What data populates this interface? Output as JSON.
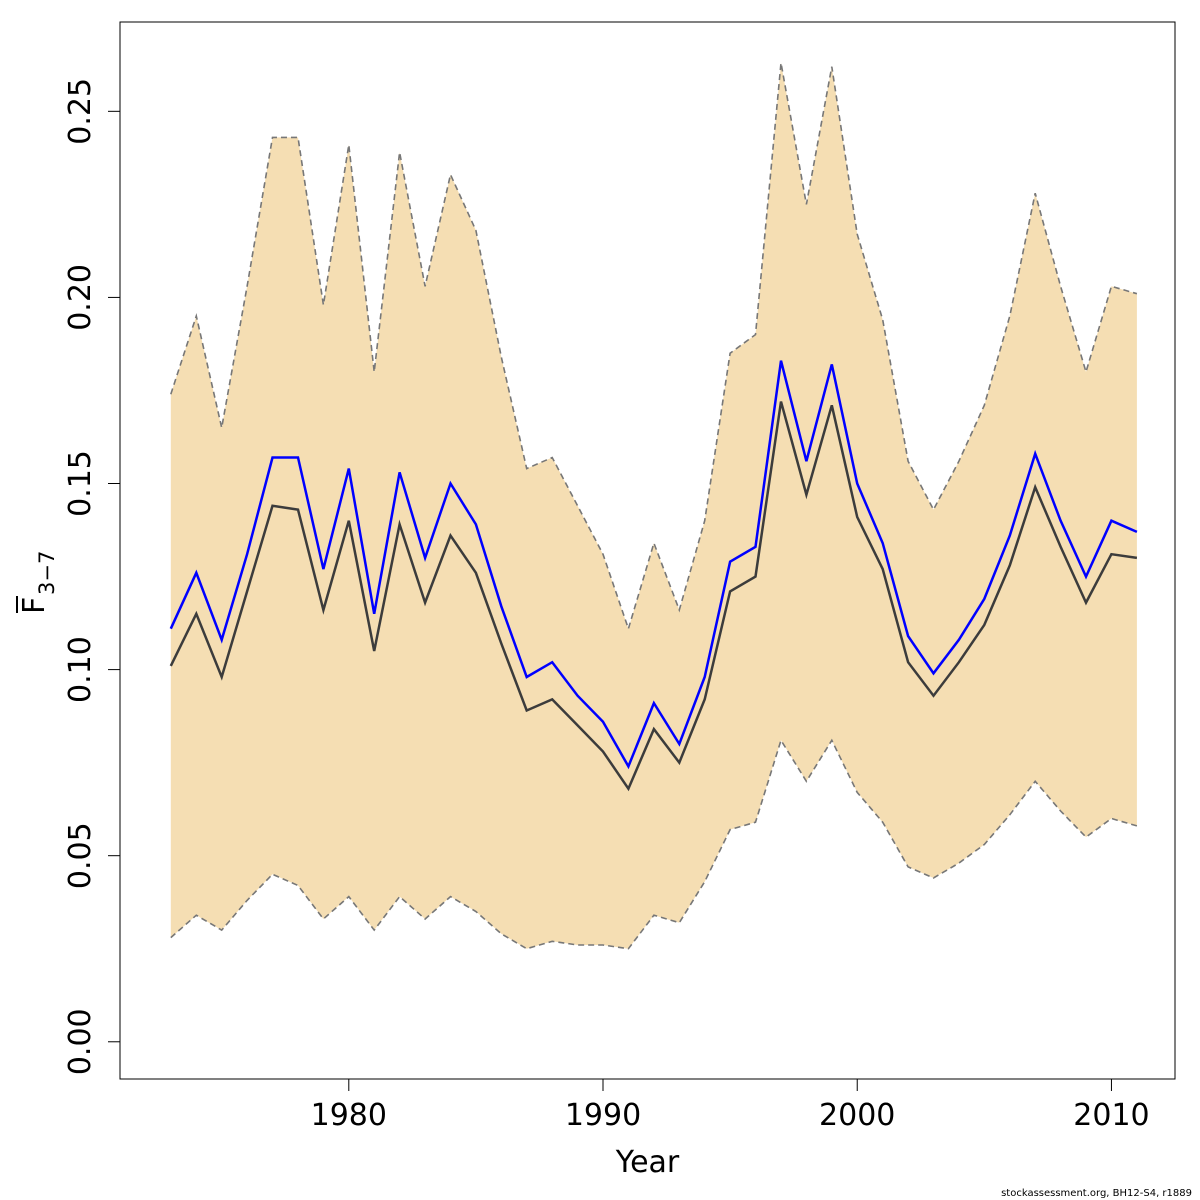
{
  "chart_data": {
    "type": "line",
    "xlabel": "Year",
    "ylabel": {
      "main": "F",
      "subscript": "3−7",
      "overbar": true
    },
    "xlim": [
      1971,
      2012.5
    ],
    "ylim": [
      -0.01,
      0.274
    ],
    "xticks": [
      1980,
      1990,
      2000,
      2010
    ],
    "yticks": [
      0.0,
      0.05,
      0.1,
      0.15,
      0.2,
      0.25
    ],
    "ytick_labels": [
      "0.00",
      "0.05",
      "0.10",
      "0.15",
      "0.20",
      "0.25"
    ],
    "xtick_labels": [
      "1980",
      "1990",
      "2000",
      "2010"
    ],
    "grid": false,
    "legend": "none",
    "x": [
      1973,
      1974,
      1975,
      1976,
      1977,
      1978,
      1979,
      1980,
      1981,
      1982,
      1983,
      1984,
      1985,
      1986,
      1987,
      1988,
      1989,
      1990,
      1991,
      1992,
      1993,
      1994,
      1995,
      1996,
      1997,
      1998,
      1999,
      2000,
      2001,
      2002,
      2003,
      2004,
      2005,
      2006,
      2007,
      2008,
      2009,
      2010,
      2011
    ],
    "band": {
      "upper": [
        0.174,
        0.195,
        0.165,
        0.203,
        0.243,
        0.243,
        0.198,
        0.241,
        0.18,
        0.239,
        0.203,
        0.233,
        0.218,
        0.184,
        0.154,
        0.157,
        0.144,
        0.131,
        0.111,
        0.134,
        0.116,
        0.14,
        0.185,
        0.19,
        0.263,
        0.225,
        0.262,
        0.217,
        0.194,
        0.156,
        0.143,
        0.156,
        0.171,
        0.195,
        0.228,
        0.203,
        0.18,
        0.203,
        0.201
      ],
      "lower": [
        0.028,
        0.034,
        0.03,
        0.038,
        0.045,
        0.042,
        0.033,
        0.039,
        0.03,
        0.039,
        0.033,
        0.039,
        0.035,
        0.029,
        0.025,
        0.027,
        0.026,
        0.026,
        0.025,
        0.034,
        0.032,
        0.043,
        0.057,
        0.059,
        0.081,
        0.07,
        0.081,
        0.067,
        0.059,
        0.047,
        0.044,
        0.048,
        0.053,
        0.061,
        0.07,
        0.062,
        0.055,
        0.06,
        0.058
      ],
      "color": "#f5deb3",
      "border_color": "#777777"
    },
    "series": [
      {
        "color": "#0000ff",
        "values": [
          0.111,
          0.126,
          0.108,
          0.131,
          0.157,
          0.157,
          0.127,
          0.154,
          0.115,
          0.153,
          0.13,
          0.15,
          0.139,
          0.117,
          0.098,
          0.102,
          0.093,
          0.086,
          0.074,
          0.091,
          0.08,
          0.098,
          0.129,
          0.133,
          0.183,
          0.156,
          0.182,
          0.15,
          0.134,
          0.109,
          0.099,
          0.108,
          0.119,
          0.136,
          0.158,
          0.14,
          0.125,
          0.14,
          0.137
        ]
      },
      {
        "color": "#3c3c3c",
        "values": [
          0.101,
          0.115,
          0.098,
          0.121,
          0.144,
          0.143,
          0.116,
          0.14,
          0.105,
          0.139,
          0.118,
          0.136,
          0.126,
          0.107,
          0.089,
          0.092,
          0.085,
          0.078,
          0.068,
          0.084,
          0.075,
          0.092,
          0.121,
          0.125,
          0.172,
          0.147,
          0.171,
          0.141,
          0.127,
          0.102,
          0.093,
          0.102,
          0.112,
          0.128,
          0.149,
          0.133,
          0.118,
          0.131,
          0.13
        ]
      }
    ]
  },
  "credit": "stockassessment.org, BH12-S4, r1889"
}
